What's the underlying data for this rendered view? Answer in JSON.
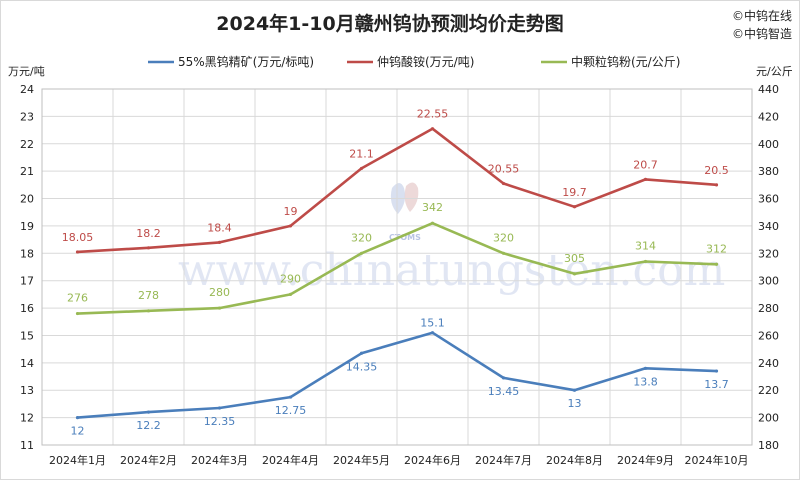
{
  "chart_data": {
    "type": "line",
    "title": "2024年1-10月赣州钨协预测均价走势图",
    "credits": [
      "©中钨在线",
      "©中钨智造"
    ],
    "watermark": "www.chinatungsten.com",
    "watermark_logo": "CTOMS",
    "left_unit": "万元/吨",
    "right_unit": "元/公斤",
    "categories": [
      "2024年1月",
      "2024年2月",
      "2024年3月",
      "2024年4月",
      "2024年5月",
      "2024年6月",
      "2024年7月",
      "2024年8月",
      "2024年9月",
      "2024年10月"
    ],
    "left_axis": {
      "min": 11,
      "max": 24,
      "step": 1
    },
    "right_axis": {
      "min": 180,
      "max": 440,
      "step": 20
    },
    "grid": true,
    "legend_position": "top",
    "series": [
      {
        "name": "55%黑钨精矿(万元/标吨)",
        "axis": "left",
        "color": "#4a7ebb",
        "values": [
          12,
          12.2,
          12.35,
          12.75,
          14.35,
          15.1,
          13.45,
          13,
          13.8,
          13.7
        ],
        "labels": [
          "12",
          "12.2",
          "12.35",
          "12.75",
          "14.35",
          "15.1",
          "13.45",
          "13",
          "13.8",
          "13.7"
        ]
      },
      {
        "name": "仲钨酸铵(万元/吨)",
        "axis": "left",
        "color": "#be4b48",
        "values": [
          18.05,
          18.2,
          18.4,
          19,
          21.1,
          22.55,
          20.55,
          19.7,
          20.7,
          20.5
        ],
        "labels": [
          "18.05",
          "18.2",
          "18.4",
          "19",
          "21.1",
          "22.55",
          "20.55",
          "19.7",
          "20.7",
          "20.5"
        ]
      },
      {
        "name": "中颗粒钨粉(元/公斤)",
        "axis": "right",
        "color": "#98b954",
        "values": [
          276,
          278,
          280,
          290,
          320,
          342,
          320,
          305,
          314,
          312
        ],
        "labels": [
          "276",
          "278",
          "280",
          "290",
          "320",
          "342",
          "320",
          "305",
          "314",
          "312"
        ]
      }
    ]
  }
}
